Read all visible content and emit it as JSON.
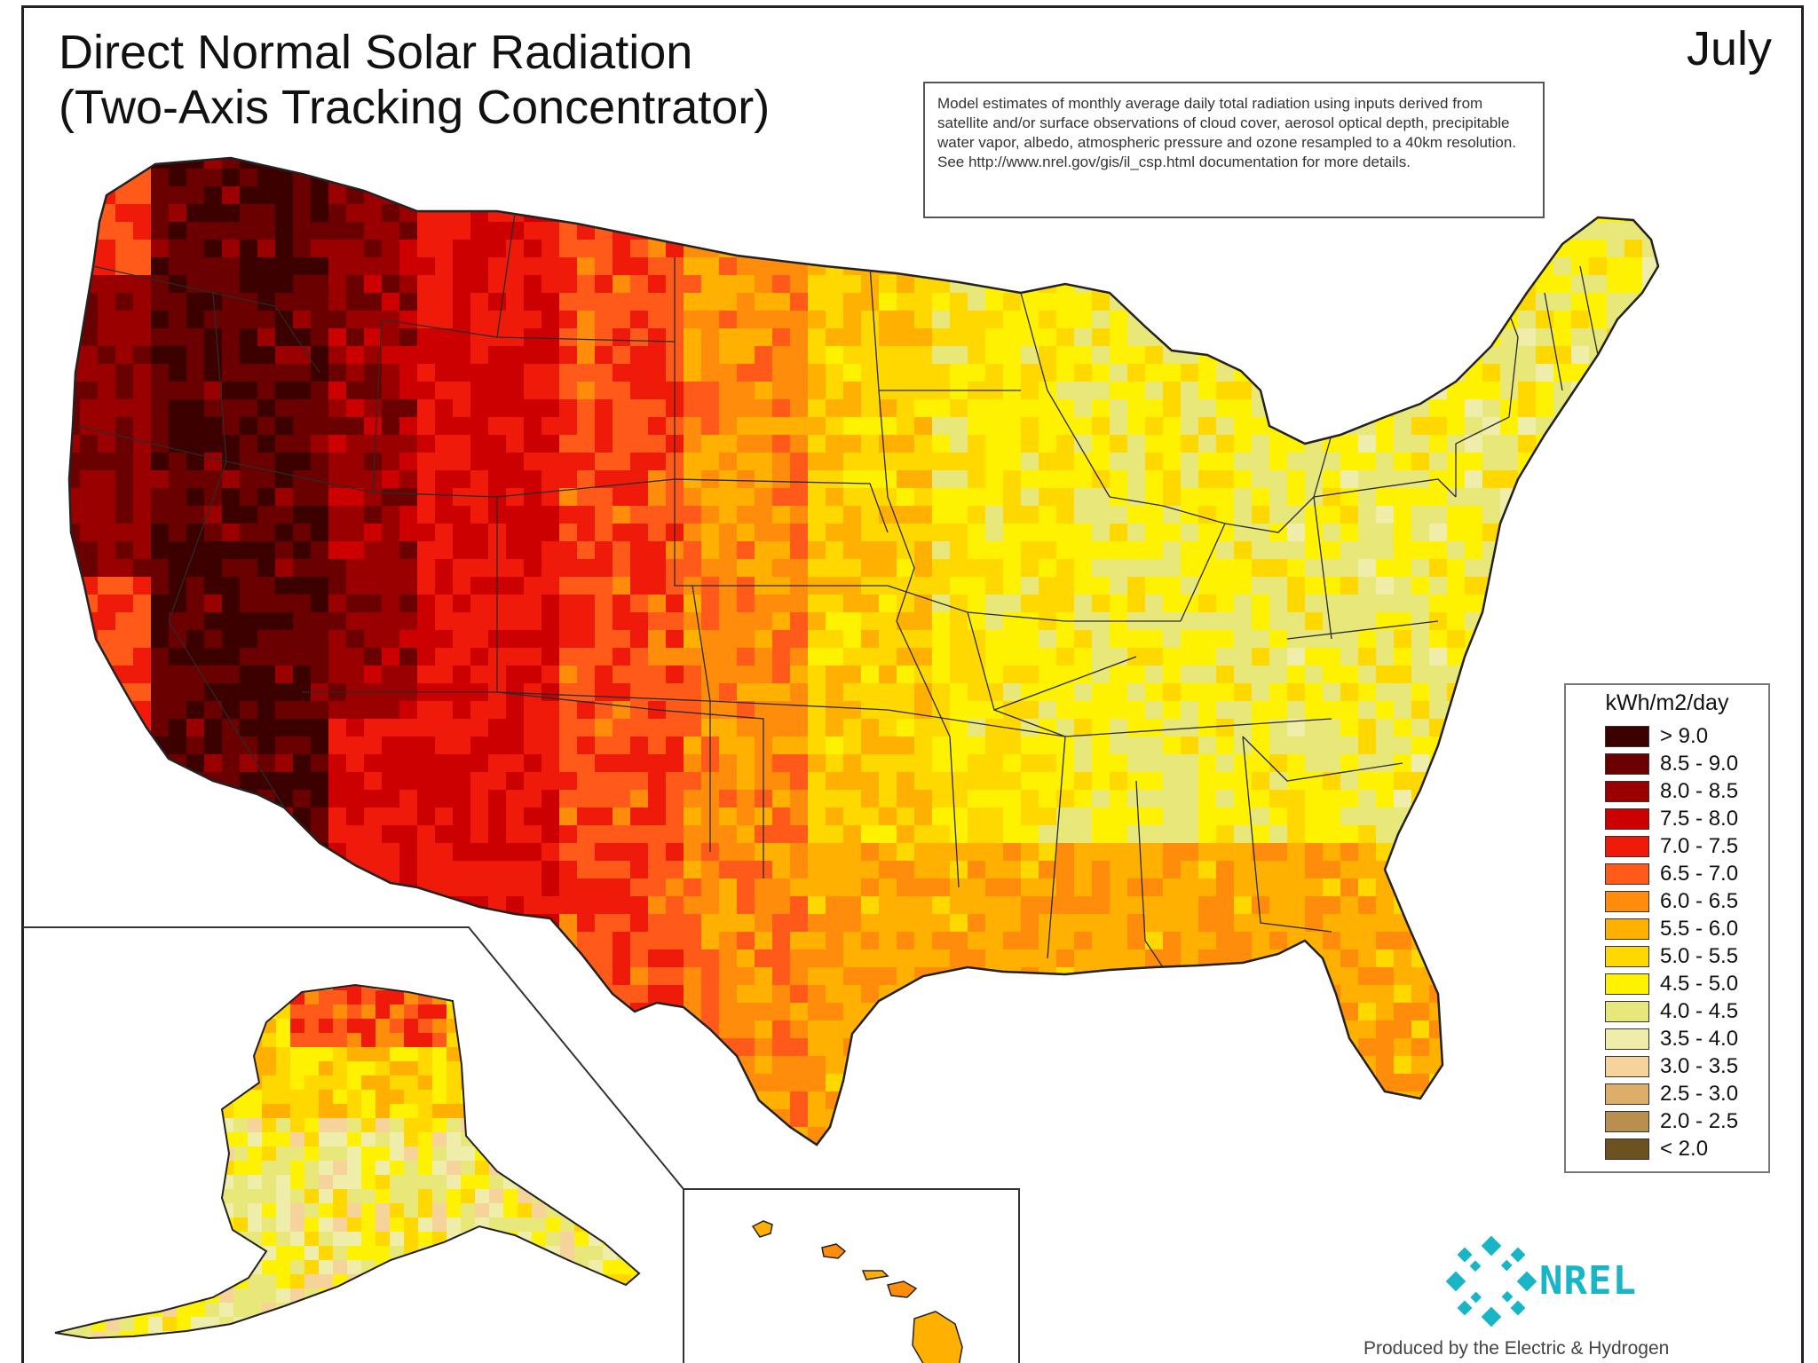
{
  "title": "Direct Normal Solar Radiation\n(Two-Axis Tracking Concentrator)",
  "month": "July",
  "note": "Model estimates of monthly average daily total radiation using inputs derived from satellite and/or surface observations of cloud cover, aerosol optical depth, precipitable water vapor, albedo, atmospheric pressure and ozone resampled to a 40km resolution.  See http://www.nrel.gov/gis/il_csp.html documentation for more details.",
  "legend": {
    "title": "kWh/m2/day",
    "classes": [
      {
        "label": "> 9.0",
        "color": "#3d0000"
      },
      {
        "label": "8.5 - 9.0",
        "color": "#6b0000"
      },
      {
        "label": "8.0 - 8.5",
        "color": "#9a0000"
      },
      {
        "label": "7.5 - 8.0",
        "color": "#cc0000"
      },
      {
        "label": "7.0 - 7.5",
        "color": "#f01a0a"
      },
      {
        "label": "6.5 - 7.0",
        "color": "#ff5a1a"
      },
      {
        "label": "6.0 - 6.5",
        "color": "#ff8c0a"
      },
      {
        "label": "5.5 - 6.0",
        "color": "#ffb000"
      },
      {
        "label": "5.0 - 5.5",
        "color": "#ffd800"
      },
      {
        "label": "4.5 - 5.0",
        "color": "#fff200"
      },
      {
        "label": "4.0 - 4.5",
        "color": "#e8e87a"
      },
      {
        "label": "3.5 - 4.0",
        "color": "#eeeeaa"
      },
      {
        "label": "3.0 - 3.5",
        "color": "#f5d39a"
      },
      {
        "label": "2.5 - 3.0",
        "color": "#ddae6a"
      },
      {
        "label": "2.0 - 2.5",
        "color": "#b88f4e"
      },
      {
        "label": "< 2.0",
        "color": "#6b5220"
      }
    ]
  },
  "logo": {
    "text": "NREL",
    "color": "#19b5c7"
  },
  "credit": "Produced by the Electric & Hydrogen"
}
